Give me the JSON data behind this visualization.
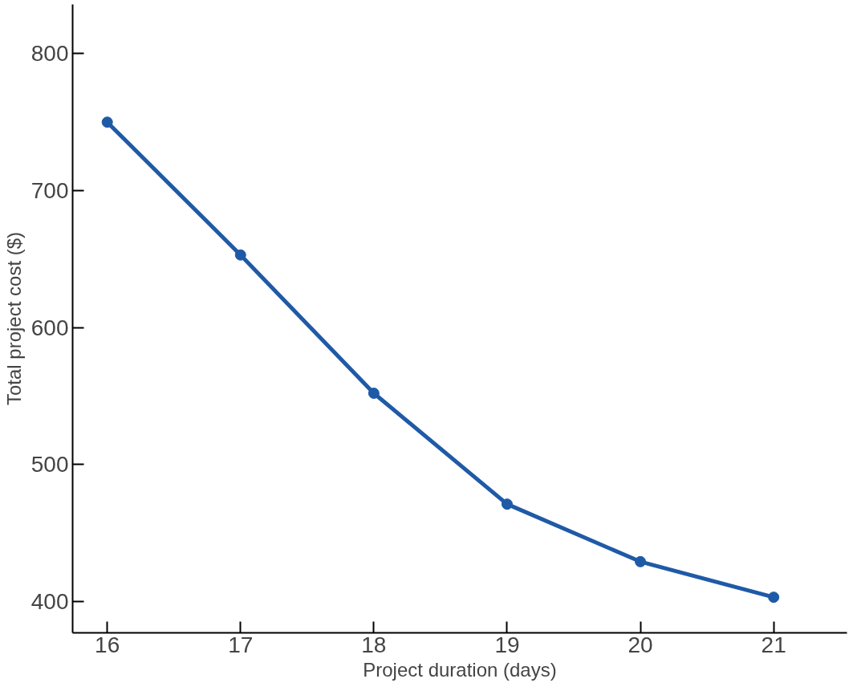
{
  "chart_data": {
    "type": "line",
    "xlabel": "Project duration (days)",
    "ylabel": "Total project cost ($)",
    "x": [
      16,
      17,
      18,
      19,
      20,
      21
    ],
    "series": [
      {
        "color": "#1f5aa6",
        "values": [
          750,
          653,
          552,
          471,
          429,
          403
        ]
      }
    ],
    "xlim": [
      15.74,
      21.55
    ],
    "ylim": [
      377,
      836
    ],
    "xticks": [
      16,
      17,
      18,
      19,
      20,
      21
    ],
    "yticks": [
      400,
      500,
      600,
      700,
      800
    ],
    "marker": "circle",
    "line_style": "solid"
  }
}
